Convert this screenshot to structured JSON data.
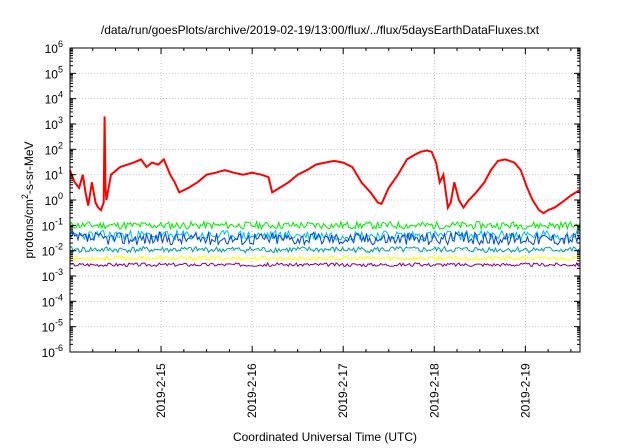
{
  "chart_data": {
    "type": "line",
    "title": "/data/run/goesPlots/archive/2019-02-19/13:00/flux/../flux/5daysEarthDataFluxes.txt",
    "xlabel": "Coordinated Universal Time (UTC)",
    "ylabel_parts": {
      "pre": "protons/cm",
      "sup": "2",
      "post": "-s-sr-MeV"
    },
    "yscale": "log",
    "ylim_exponents": [
      -6,
      6
    ],
    "ytick_base": "10",
    "yticks": [
      "-6",
      "-5",
      "-4",
      "-3",
      "-2",
      "-1",
      "0",
      "1",
      "2",
      "3",
      "4",
      "5",
      "6"
    ],
    "xlim_days": [
      14.0,
      19.6
    ],
    "xticks": [
      {
        "day": 15,
        "label": "2019-2-15"
      },
      {
        "day": 16,
        "label": "2019-2-16"
      },
      {
        "day": 17,
        "label": "2019-2-17"
      },
      {
        "day": 18,
        "label": "2019-2-18"
      },
      {
        "day": 19,
        "label": "2019-2-19"
      }
    ],
    "grid": true,
    "series": [
      {
        "color": "#ff0000",
        "points": [
          [
            14.0,
            15
          ],
          [
            14.05,
            5
          ],
          [
            14.1,
            3
          ],
          [
            14.14,
            10
          ],
          [
            14.17,
            2
          ],
          [
            14.2,
            0.6
          ],
          [
            14.24,
            5
          ],
          [
            14.28,
            0.8
          ],
          [
            14.31,
            0.5
          ],
          [
            14.34,
            0.4
          ],
          [
            14.37,
            0.8
          ],
          [
            14.38,
            2000
          ],
          [
            14.39,
            3
          ],
          [
            14.4,
            1
          ],
          [
            14.45,
            10
          ],
          [
            14.55,
            20
          ],
          [
            14.7,
            30
          ],
          [
            14.78,
            40
          ],
          [
            14.84,
            20
          ],
          [
            14.9,
            30
          ],
          [
            14.97,
            25
          ],
          [
            15.03,
            40
          ],
          [
            15.1,
            10
          ],
          [
            15.15,
            5
          ],
          [
            15.2,
            2
          ],
          [
            15.3,
            3
          ],
          [
            15.4,
            5
          ],
          [
            15.5,
            10
          ],
          [
            15.6,
            12
          ],
          [
            15.7,
            15
          ],
          [
            15.8,
            12
          ],
          [
            15.9,
            10
          ],
          [
            16.0,
            12
          ],
          [
            16.1,
            10
          ],
          [
            16.18,
            8
          ],
          [
            16.22,
            2
          ],
          [
            16.3,
            3
          ],
          [
            16.4,
            5
          ],
          [
            16.5,
            10
          ],
          [
            16.6,
            15
          ],
          [
            16.7,
            25
          ],
          [
            16.8,
            30
          ],
          [
            16.9,
            35
          ],
          [
            17.0,
            30
          ],
          [
            17.1,
            20
          ],
          [
            17.2,
            5
          ],
          [
            17.3,
            2
          ],
          [
            17.38,
            0.8
          ],
          [
            17.42,
            0.7
          ],
          [
            17.5,
            3
          ],
          [
            17.6,
            10
          ],
          [
            17.7,
            40
          ],
          [
            17.78,
            60
          ],
          [
            17.85,
            80
          ],
          [
            17.92,
            90
          ],
          [
            17.97,
            80
          ],
          [
            18.02,
            30
          ],
          [
            18.06,
            5
          ],
          [
            18.1,
            10
          ],
          [
            18.15,
            0.5
          ],
          [
            18.18,
            0.8
          ],
          [
            18.22,
            5
          ],
          [
            18.27,
            1
          ],
          [
            18.32,
            0.5
          ],
          [
            18.38,
            1
          ],
          [
            18.46,
            2
          ],
          [
            18.55,
            5
          ],
          [
            18.62,
            15
          ],
          [
            18.7,
            35
          ],
          [
            18.78,
            40
          ],
          [
            18.88,
            30
          ],
          [
            18.95,
            15
          ],
          [
            19.02,
            3
          ],
          [
            19.08,
            1
          ],
          [
            19.15,
            0.4
          ],
          [
            19.2,
            0.3
          ],
          [
            19.25,
            0.4
          ],
          [
            19.32,
            0.5
          ],
          [
            19.4,
            0.8
          ],
          [
            19.5,
            1.5
          ],
          [
            19.6,
            2.5
          ]
        ]
      },
      {
        "color": "#00ee00",
        "base": 0.1,
        "amp": 0.15,
        "seed": 11
      },
      {
        "color": "#00bbff",
        "base": 0.04,
        "amp": 0.2,
        "seed": 23
      },
      {
        "color": "#0044dd",
        "base": 0.03,
        "amp": 0.25,
        "seed": 37
      },
      {
        "color": "#00a0a0",
        "base": 0.011,
        "amp": 0.12,
        "seed": 41
      },
      {
        "color": "#ffff00",
        "base": 0.005,
        "amp": 0.08,
        "seed": 53
      },
      {
        "color": "#800080",
        "base": 0.0028,
        "amp": 0.07,
        "seed": 67
      }
    ]
  }
}
